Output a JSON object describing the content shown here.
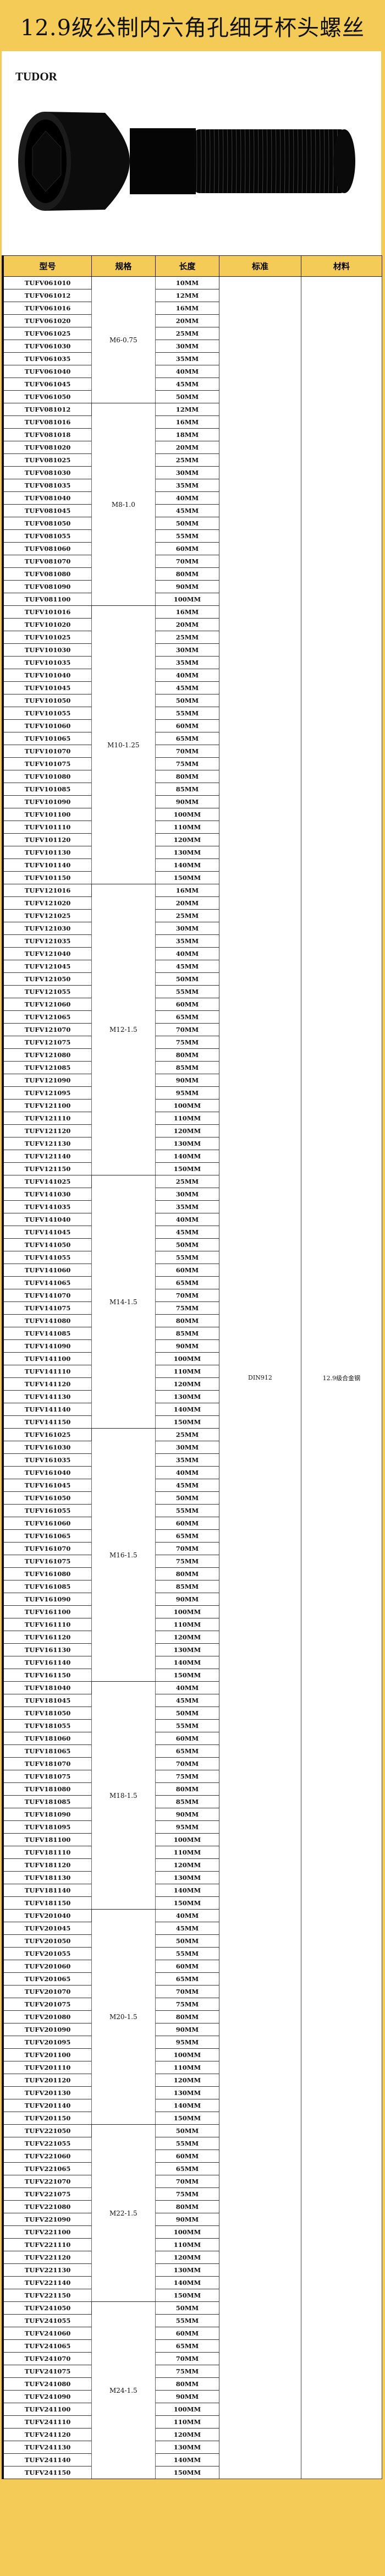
{
  "title": "12.9级公制内六角孔细牙杯头螺丝",
  "brand": "TUDOR",
  "table": {
    "headers": [
      "型号",
      "规格",
      "长度",
      "标准",
      "材料"
    ],
    "standard": "DIN912",
    "material": "12.9级合金钢",
    "unit_suffix": "MM",
    "groups": [
      {
        "spec": "M6-0.75",
        "prefix": "TUFV061",
        "lengths": [
          10,
          12,
          16,
          20,
          25,
          30,
          35,
          40,
          45,
          50
        ]
      },
      {
        "spec": "M8-1.0",
        "prefix": "TUFV081",
        "lengths": [
          12,
          16,
          18,
          20,
          25,
          30,
          35,
          40,
          45,
          50,
          55,
          60,
          70,
          80,
          90,
          100
        ]
      },
      {
        "spec": "M10-1.25",
        "prefix": "TUFV101",
        "lengths": [
          16,
          20,
          25,
          30,
          35,
          40,
          45,
          50,
          55,
          60,
          65,
          70,
          75,
          80,
          85,
          90,
          100,
          110,
          120,
          130,
          140,
          150
        ]
      },
      {
        "spec": "M12-1.5",
        "prefix": "TUFV121",
        "lengths": [
          16,
          20,
          25,
          30,
          35,
          40,
          45,
          50,
          55,
          60,
          65,
          70,
          75,
          80,
          85,
          90,
          95,
          100,
          110,
          120,
          130,
          140,
          150
        ]
      },
      {
        "spec": "M14-1.5",
        "prefix": "TUFV141",
        "lengths": [
          25,
          30,
          35,
          40,
          45,
          50,
          55,
          60,
          65,
          70,
          75,
          80,
          85,
          90,
          100,
          110,
          120,
          130,
          140,
          150
        ]
      },
      {
        "spec": "M16-1.5",
        "prefix": "TUFV161",
        "lengths": [
          25,
          30,
          35,
          40,
          45,
          50,
          55,
          60,
          65,
          70,
          75,
          80,
          85,
          90,
          100,
          110,
          120,
          130,
          140,
          150
        ]
      },
      {
        "spec": "M18-1.5",
        "prefix": "TUFV181",
        "lengths": [
          40,
          45,
          50,
          55,
          60,
          65,
          70,
          75,
          80,
          85,
          90,
          95,
          100,
          110,
          120,
          130,
          140,
          150
        ]
      },
      {
        "spec": "M20-1.5",
        "prefix": "TUFV201",
        "lengths": [
          40,
          45,
          50,
          55,
          60,
          65,
          70,
          75,
          80,
          90,
          95,
          100,
          110,
          120,
          130,
          140,
          150
        ]
      },
      {
        "spec": "M22-1.5",
        "prefix": "TUFV221",
        "lengths": [
          50,
          55,
          60,
          65,
          70,
          75,
          80,
          90,
          100,
          110,
          120,
          130,
          140,
          150
        ]
      },
      {
        "spec": "M24-1.5",
        "prefix": "TUFV241",
        "lengths": [
          50,
          55,
          60,
          65,
          70,
          75,
          80,
          90,
          100,
          110,
          120,
          130,
          140,
          150
        ]
      }
    ]
  },
  "colors": {
    "accent": "#f4cb57",
    "text": "#111111"
  }
}
